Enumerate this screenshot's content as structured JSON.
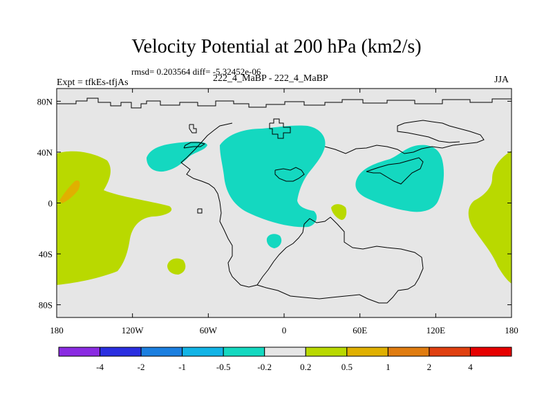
{
  "title": "Velocity Potential at 200 hPa (km2/s)",
  "stats": "rmsd= 0.203564 diff= -5.32452e-06",
  "left_label": "Expt = tfkEs-tfjAs",
  "center_label": "222_4_MaBP - 222_4_MaBP",
  "right_label": "JJA",
  "map": {
    "projection": "cylindrical-equidistant",
    "lon_range": [
      -180,
      180
    ],
    "lat_range": [
      -90,
      90
    ],
    "background_color": "#e6e6e6",
    "x_ticks": [
      {
        "value": -180,
        "label": "180"
      },
      {
        "value": -120,
        "label": "120W"
      },
      {
        "value": -60,
        "label": "60W"
      },
      {
        "value": 0,
        "label": "0"
      },
      {
        "value": 60,
        "label": "60E"
      },
      {
        "value": 120,
        "label": "120E"
      },
      {
        "value": 180,
        "label": "180"
      }
    ],
    "y_ticks": [
      {
        "value": 80,
        "label": "80N"
      },
      {
        "value": 40,
        "label": "40N"
      },
      {
        "value": 0,
        "label": "0"
      },
      {
        "value": -40,
        "label": "40S"
      },
      {
        "value": -80,
        "label": "80S"
      }
    ]
  },
  "colorbar": {
    "colors": [
      "#8a2be2",
      "#2a2ee0",
      "#1b7fe0",
      "#12b4e6",
      "#14d8c0",
      "#e6e6e6",
      "#b9d900",
      "#e0b000",
      "#e07c10",
      "#e04010",
      "#e60000"
    ],
    "labels": [
      "-4",
      "-2",
      "-1",
      "-0.5",
      "-0.2",
      "0.2",
      "0.5",
      "1",
      "2",
      "4"
    ]
  },
  "colors": {
    "negative_fill": "#14d8c0",
    "positive_fill": "#b9d900",
    "strong_positive_fill": "#e0b000"
  }
}
